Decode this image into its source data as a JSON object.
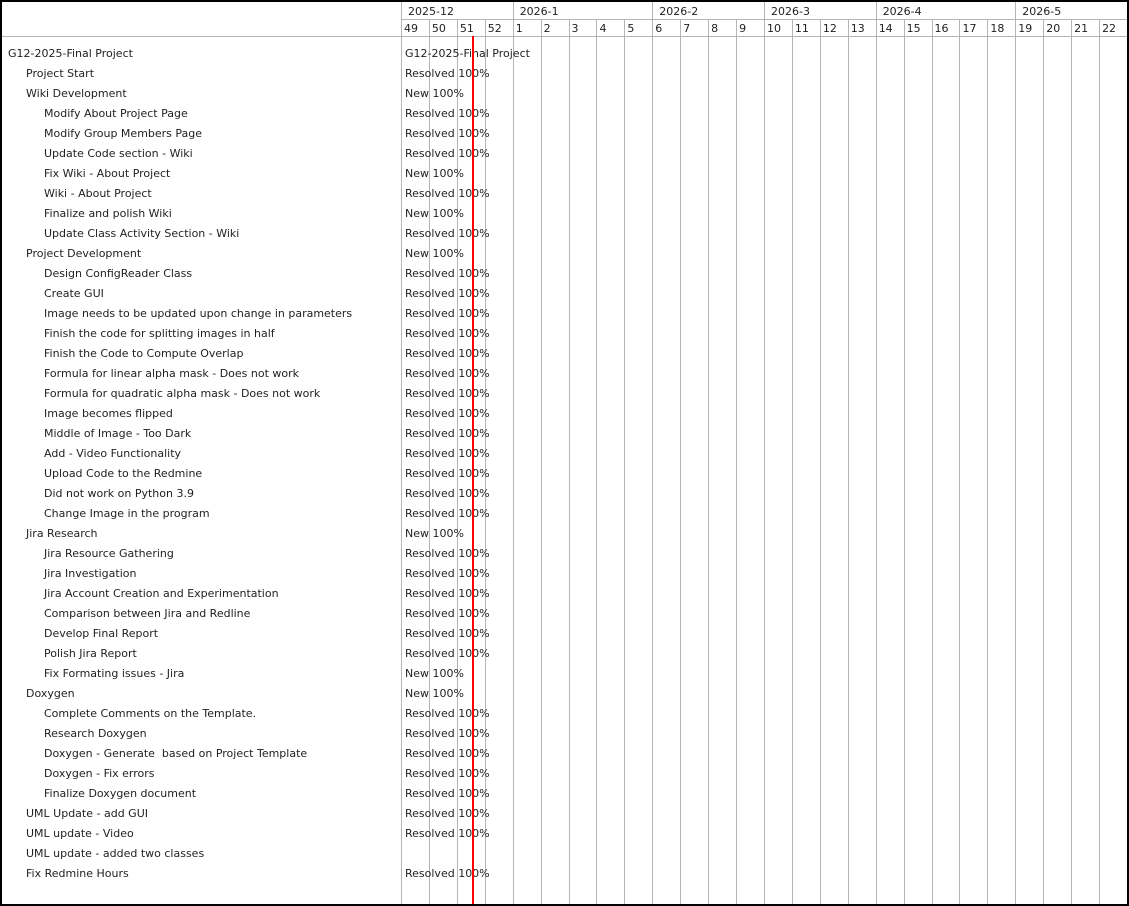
{
  "chart": {
    "timeline": {
      "months": [
        {
          "label": "2025-12",
          "weeks": [
            "49",
            "50",
            "51",
            "52"
          ]
        },
        {
          "label": "2026-1",
          "weeks": [
            "1",
            "2",
            "3",
            "4",
            "5"
          ]
        },
        {
          "label": "2026-2",
          "weeks": [
            "6",
            "7",
            "8",
            "9"
          ]
        },
        {
          "label": "2026-3",
          "weeks": [
            "10",
            "11",
            "12",
            "13"
          ]
        },
        {
          "label": "2026-4",
          "weeks": [
            "14",
            "15",
            "16",
            "17",
            "18"
          ]
        },
        {
          "label": "2026-5",
          "weeks": [
            "19",
            "20",
            "21",
            "22"
          ]
        }
      ],
      "today_marker": {
        "week": "51",
        "fraction": 0.55
      }
    },
    "colors": {
      "today_line": "#ff0000",
      "grid": "#b5b5b5",
      "text": "#1f1f1f",
      "frame_border": "#000000",
      "background": "#ffffff"
    },
    "rows": [
      {
        "subject": "G12-2025-Final Project",
        "level": 0,
        "chart_label": "G12-2025-Final Project"
      },
      {
        "subject": "Project Start",
        "level": 1,
        "chart_label": "Resolved 100%"
      },
      {
        "subject": "Wiki Development",
        "level": 1,
        "chart_label": "New 100%"
      },
      {
        "subject": "Modify About Project Page",
        "level": 2,
        "chart_label": "Resolved 100%"
      },
      {
        "subject": "Modify Group Members Page",
        "level": 2,
        "chart_label": "Resolved 100%"
      },
      {
        "subject": "Update Code section - Wiki",
        "level": 2,
        "chart_label": "Resolved 100%"
      },
      {
        "subject": "Fix Wiki - About Project",
        "level": 2,
        "chart_label": "New 100%"
      },
      {
        "subject": "Wiki - About Project",
        "level": 2,
        "chart_label": "Resolved 100%"
      },
      {
        "subject": "Finalize and polish Wiki",
        "level": 2,
        "chart_label": "New 100%"
      },
      {
        "subject": "Update Class Activity Section - Wiki",
        "level": 2,
        "chart_label": "Resolved 100%"
      },
      {
        "subject": "Project Development",
        "level": 1,
        "chart_label": "New 100%"
      },
      {
        "subject": "Design ConfigReader Class",
        "level": 2,
        "chart_label": "Resolved 100%"
      },
      {
        "subject": "Create GUI",
        "level": 2,
        "chart_label": "Resolved 100%"
      },
      {
        "subject": "Image needs to be updated upon change in parameters",
        "level": 2,
        "chart_label": "Resolved 100%"
      },
      {
        "subject": "Finish the code for splitting images in half",
        "level": 2,
        "chart_label": "Resolved 100%"
      },
      {
        "subject": "Finish the Code to Compute Overlap",
        "level": 2,
        "chart_label": "Resolved 100%"
      },
      {
        "subject": "Formula for linear alpha mask - Does not work",
        "level": 2,
        "chart_label": "Resolved 100%"
      },
      {
        "subject": "Formula for quadratic alpha mask - Does not work",
        "level": 2,
        "chart_label": "Resolved 100%"
      },
      {
        "subject": "Image becomes flipped",
        "level": 2,
        "chart_label": "Resolved 100%"
      },
      {
        "subject": "Middle of Image - Too Dark",
        "level": 2,
        "chart_label": "Resolved 100%"
      },
      {
        "subject": "Add - Video Functionality",
        "level": 2,
        "chart_label": "Resolved 100%"
      },
      {
        "subject": "Upload Code to the Redmine",
        "level": 2,
        "chart_label": "Resolved 100%"
      },
      {
        "subject": "Did not work on Python 3.9",
        "level": 2,
        "chart_label": "Resolved 100%"
      },
      {
        "subject": "Change Image in the program",
        "level": 2,
        "chart_label": "Resolved 100%"
      },
      {
        "subject": "Jira Research",
        "level": 1,
        "chart_label": "New 100%"
      },
      {
        "subject": "Jira Resource Gathering",
        "level": 2,
        "chart_label": "Resolved 100%"
      },
      {
        "subject": "Jira Investigation",
        "level": 2,
        "chart_label": "Resolved 100%"
      },
      {
        "subject": "Jira Account Creation and Experimentation",
        "level": 2,
        "chart_label": "Resolved 100%"
      },
      {
        "subject": "Comparison between Jira and Redline",
        "level": 2,
        "chart_label": "Resolved 100%"
      },
      {
        "subject": "Develop Final Report",
        "level": 2,
        "chart_label": "Resolved 100%"
      },
      {
        "subject": "Polish Jira Report",
        "level": 2,
        "chart_label": "Resolved 100%"
      },
      {
        "subject": "Fix Formating issues - Jira",
        "level": 2,
        "chart_label": "New 100%"
      },
      {
        "subject": "Doxygen",
        "level": 1,
        "chart_label": "New 100%"
      },
      {
        "subject": "Complete Comments on the Template.",
        "level": 2,
        "chart_label": "Resolved 100%"
      },
      {
        "subject": "Research Doxygen",
        "level": 2,
        "chart_label": "Resolved 100%"
      },
      {
        "subject": "Doxygen - Generate  based on Project Template",
        "level": 2,
        "chart_label": "Resolved 100%"
      },
      {
        "subject": "Doxygen - Fix errors",
        "level": 2,
        "chart_label": "Resolved 100%"
      },
      {
        "subject": "Finalize Doxygen document",
        "level": 2,
        "chart_label": "Resolved 100%"
      },
      {
        "subject": "UML Update - add GUI",
        "level": 1,
        "chart_label": "Resolved 100%"
      },
      {
        "subject": "UML update - Video",
        "level": 1,
        "chart_label": "Resolved 100%"
      },
      {
        "subject": "UML update - added two classes",
        "level": 1,
        "chart_label": ""
      },
      {
        "subject": "Fix Redmine Hours",
        "level": 1,
        "chart_label": "Resolved 100%"
      }
    ]
  }
}
